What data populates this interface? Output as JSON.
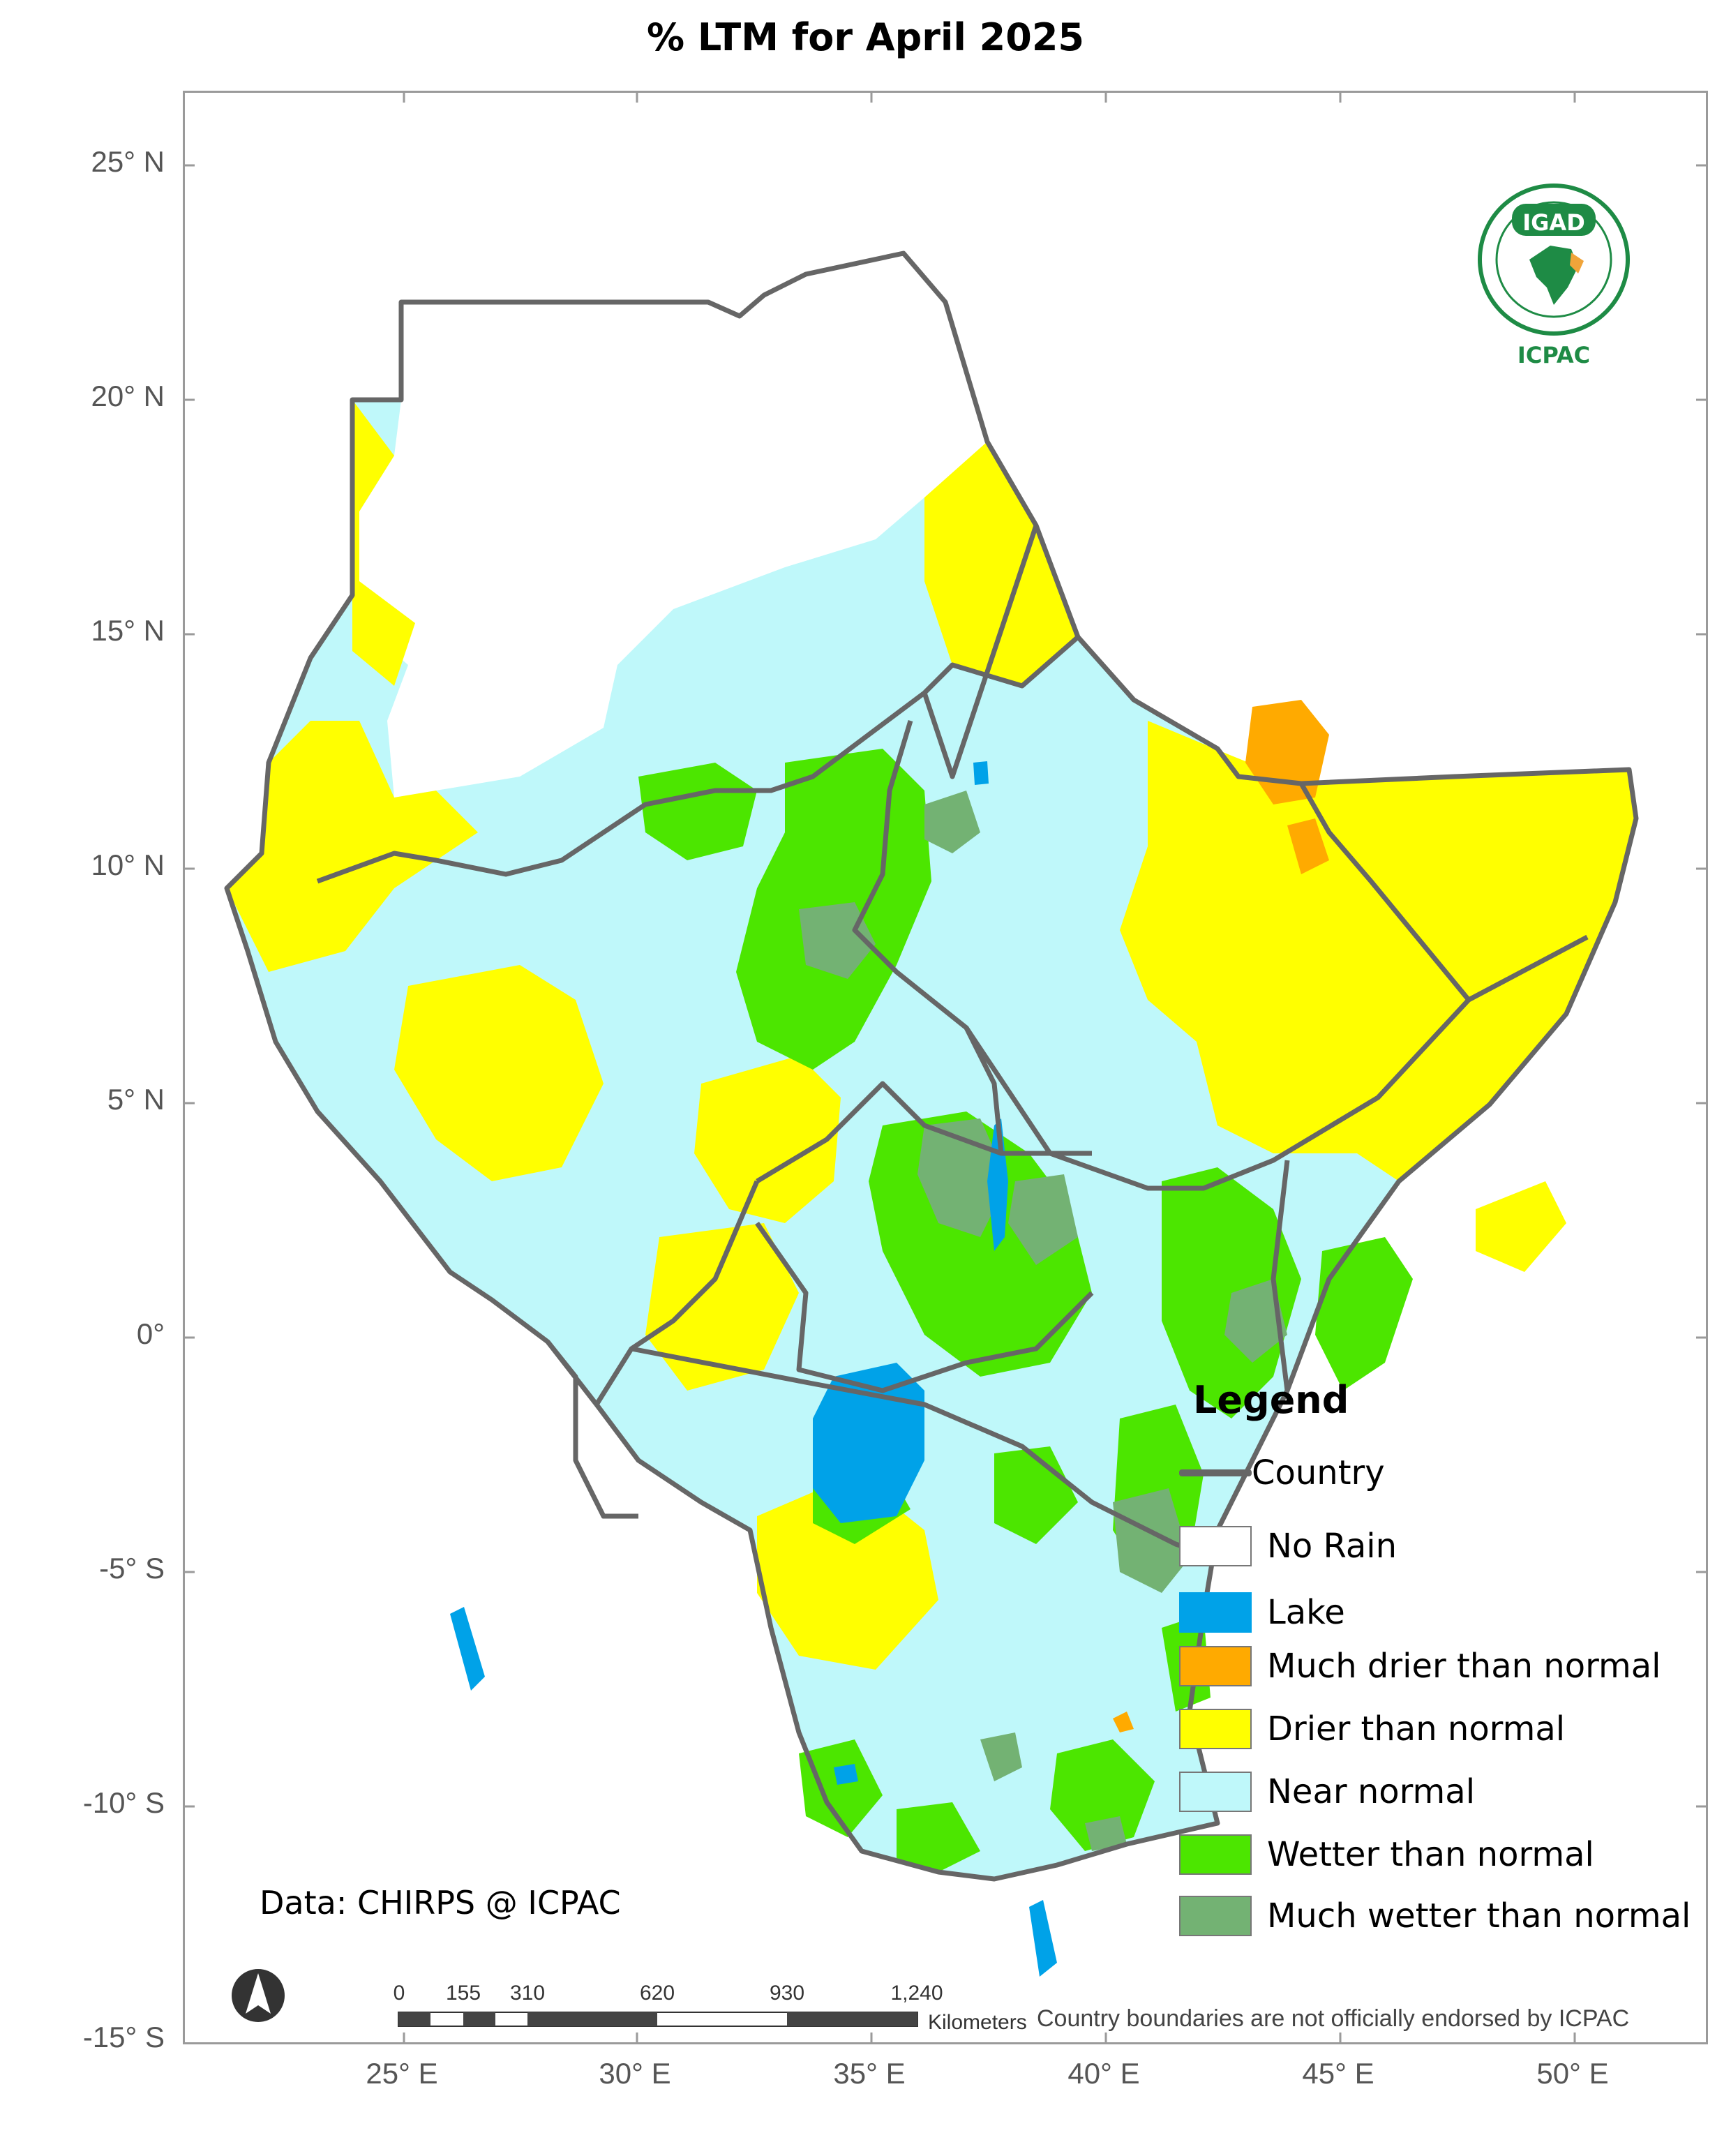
{
  "title": "% LTM  for  April 2025",
  "latitude_labels": [
    "25° N",
    "20° N",
    "15° N",
    "10° N",
    "5° N",
    "0°",
    "-5° S",
    "-10° S",
    "-15° S"
  ],
  "longitude_labels": [
    "25° E",
    "30° E",
    "35° E",
    "40° E",
    "45° E",
    "50° E"
  ],
  "legend": {
    "title": "Legend",
    "items": [
      {
        "label": "Country",
        "kind": "line",
        "color": "#666666"
      },
      {
        "label": "No Rain",
        "kind": "swatch",
        "color": "#ffffff"
      },
      {
        "label": "Lake",
        "kind": "swatch",
        "color": "#00a2e8"
      },
      {
        "label": "Much drier than normal",
        "kind": "swatch",
        "color": "#ffaa00"
      },
      {
        "label": "Drier than normal",
        "kind": "swatch",
        "color": "#ffff00"
      },
      {
        "label": "Near normal",
        "kind": "swatch",
        "color": "#bff8fa"
      },
      {
        "label": "Wetter than normal",
        "kind": "swatch",
        "color": "#4ce600"
      },
      {
        "label": "Much wetter than normal",
        "kind": "swatch",
        "color": "#73b273"
      }
    ]
  },
  "data_credit": "Data: CHIRPS @ ICPAC",
  "disclaimer": "Country boundaries are not officially endorsed by ICPAC",
  "scale_bar": {
    "labels": [
      "0",
      "155",
      "310",
      "620",
      "930",
      "1,240"
    ],
    "unit": "Kilometers"
  },
  "logo": {
    "top_text": "IGAD",
    "bottom_text": "ICPAC"
  },
  "colors": {
    "no_rain": "#ffffff",
    "lake": "#00a2e8",
    "much_drier": "#ffaa00",
    "drier": "#ffff00",
    "near_normal": "#bff8fa",
    "wetter": "#4ce600",
    "much_wetter": "#73b273",
    "country": "#666666"
  }
}
